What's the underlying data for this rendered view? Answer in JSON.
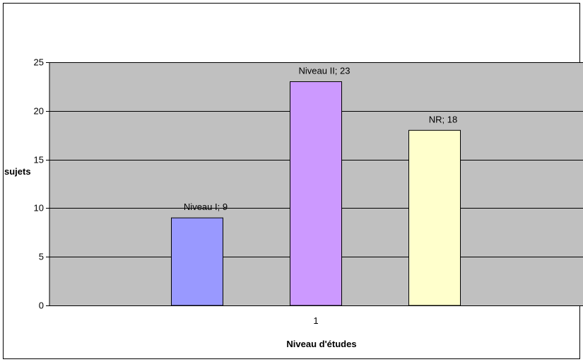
{
  "chart_data": {
    "type": "bar",
    "categories": [
      "1"
    ],
    "series": [
      {
        "name": "Niveau I",
        "values": [
          9
        ],
        "color": "#9999ff",
        "label": "Niveau I; 9"
      },
      {
        "name": "Niveau II",
        "values": [
          23
        ],
        "color": "#cc99ff",
        "label": "Niveau II; 23"
      },
      {
        "name": "NR",
        "values": [
          18
        ],
        "color": "#ffffcc",
        "label": "NR; 18"
      }
    ],
    "title": "",
    "xlabel": "Niveau d'études",
    "ylabel": "sujets",
    "ylim": [
      0,
      25
    ],
    "yticks": [
      "0",
      "5",
      "10",
      "15",
      "20",
      "25"
    ],
    "grid": true,
    "plot_background": "#c0c0c0",
    "legend": "none"
  }
}
